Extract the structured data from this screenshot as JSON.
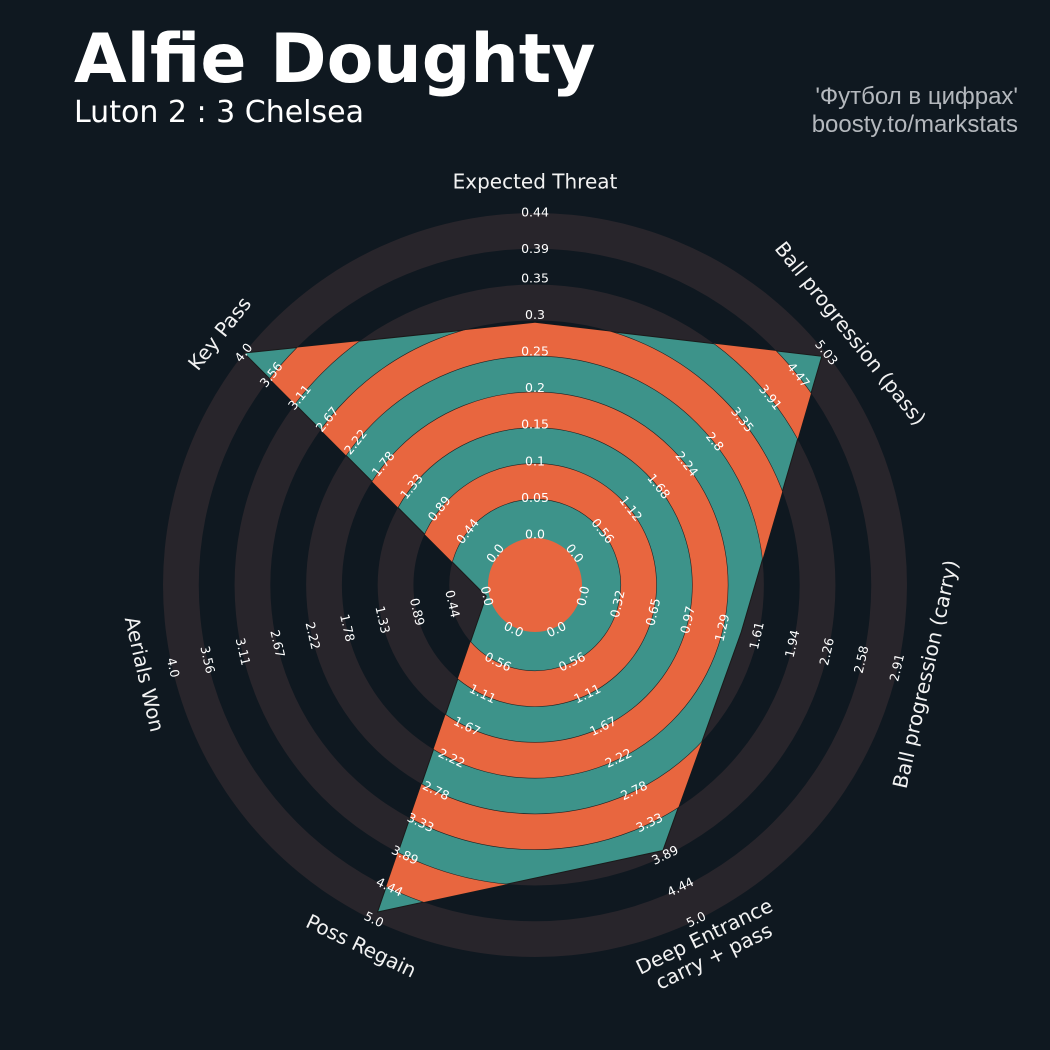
{
  "title": "Alfie Doughty",
  "subtitle": "Luton 2 : 3 Chelsea",
  "credits": [
    "'Футбол в цифрах'",
    "boosty.to/markstats"
  ],
  "chart_data": {
    "type": "radar",
    "params": [
      "Expected Threat",
      "Ball progression (pass)",
      "Ball progression (carry)",
      [
        "Deep Entrance",
        "carry + pass"
      ],
      "Poss Regain",
      "Aerials Won",
      "Key Pass"
    ],
    "ranges": [
      [
        0,
        0.44
      ],
      [
        0,
        5.03
      ],
      [
        0,
        2.91
      ],
      [
        0,
        5
      ],
      [
        0,
        5
      ],
      [
        0,
        4
      ],
      [
        0,
        4
      ]
    ],
    "ticks": [
      [
        {
          "value": 0,
          "label": "0.0"
        },
        0.05,
        0.1,
        0.15,
        0.2,
        0.25,
        0.3,
        0.35,
        0.39,
        0.44
      ],
      [
        {
          "value": 0,
          "label": "0.0"
        },
        0.56,
        1.12,
        1.68,
        2.24,
        2.8,
        3.35,
        3.91,
        4.47,
        5.03
      ],
      [
        {
          "value": 0,
          "label": "0.0"
        },
        0.32,
        0.65,
        0.97,
        1.29,
        1.61,
        1.94,
        2.26,
        2.58,
        2.91
      ],
      [
        {
          "value": 0,
          "label": "0.0"
        },
        0.56,
        1.11,
        1.67,
        2.22,
        2.78,
        3.33,
        3.89,
        4.44,
        {
          "value": 5,
          "label": "5.0"
        }
      ],
      [
        {
          "value": 0,
          "label": "0.0"
        },
        0.56,
        1.11,
        1.67,
        2.22,
        2.78,
        3.33,
        3.89,
        4.44,
        {
          "value": 5,
          "label": "5.0"
        }
      ],
      [
        {
          "value": 0,
          "label": "0.0"
        },
        0.44,
        0.89,
        1.33,
        1.78,
        2.22,
        2.67,
        3.11,
        3.56,
        {
          "value": 4,
          "label": "4.0"
        }
      ],
      [
        {
          "value": 0,
          "label": "0.0"
        },
        0.44,
        0.89,
        1.33,
        1.78,
        2.22,
        2.67,
        3.11,
        3.56,
        {
          "value": 4,
          "label": "4.0"
        }
      ]
    ],
    "values": [
      0.29,
      4.95,
      1.46,
      3.8,
      4.86,
      0,
      4.0
    ],
    "color": "#3d938a",
    "ring_color": "#e8663f",
    "band_color": "#28252b"
  }
}
